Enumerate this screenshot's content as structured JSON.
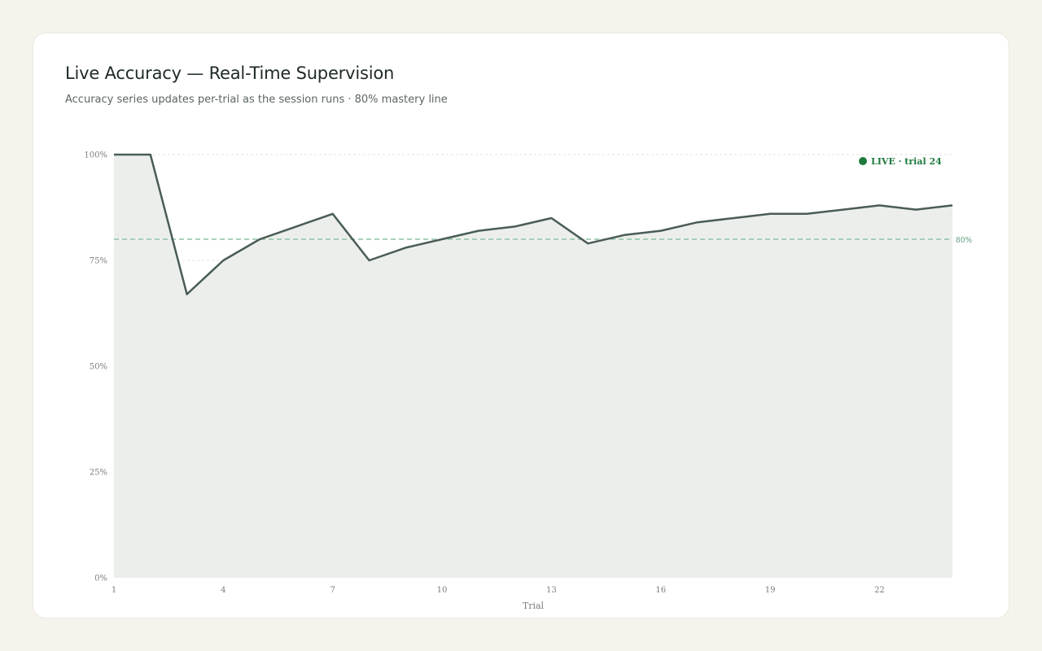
{
  "header": {
    "title": "Live Accuracy — Real-Time Supervision",
    "subtitle": "Accuracy series updates per-trial as the session runs · 80% mastery line"
  },
  "colors": {
    "line": "#4a5c56",
    "area_fill": "#eceeec",
    "threshold": "#8cc4a4",
    "threshold_label": "#5a9a74",
    "live": "#1e7a3e",
    "grid": "#e2e2e2",
    "tick_text": "#7a7f7c"
  },
  "chart_data": {
    "type": "area",
    "title": "Live Accuracy — Real-Time Supervision",
    "xlabel": "Trial",
    "ylabel": "",
    "x": [
      1,
      2,
      3,
      4,
      5,
      6,
      7,
      8,
      9,
      10,
      11,
      12,
      13,
      14,
      15,
      16,
      17,
      18,
      19,
      20,
      21,
      22,
      23,
      24
    ],
    "series": [
      {
        "values": [
          100,
          100,
          67,
          75,
          80,
          83,
          86,
          75,
          78,
          80,
          82,
          83,
          85,
          79,
          81,
          82,
          84,
          85,
          86,
          86,
          87,
          88,
          87,
          88
        ]
      }
    ],
    "xlim": [
      1,
      24
    ],
    "ylim": [
      0,
      100
    ],
    "x_ticks": [
      1,
      4,
      7,
      10,
      13,
      16,
      19,
      22
    ],
    "y_ticks": [
      0,
      25,
      50,
      75,
      100
    ],
    "y_tick_labels": [
      "0%",
      "25%",
      "50%",
      "75%",
      "100%"
    ],
    "threshold": {
      "value": 80,
      "label": "80%"
    },
    "live_indicator": {
      "text": "LIVE · trial 24"
    },
    "grid": true
  }
}
